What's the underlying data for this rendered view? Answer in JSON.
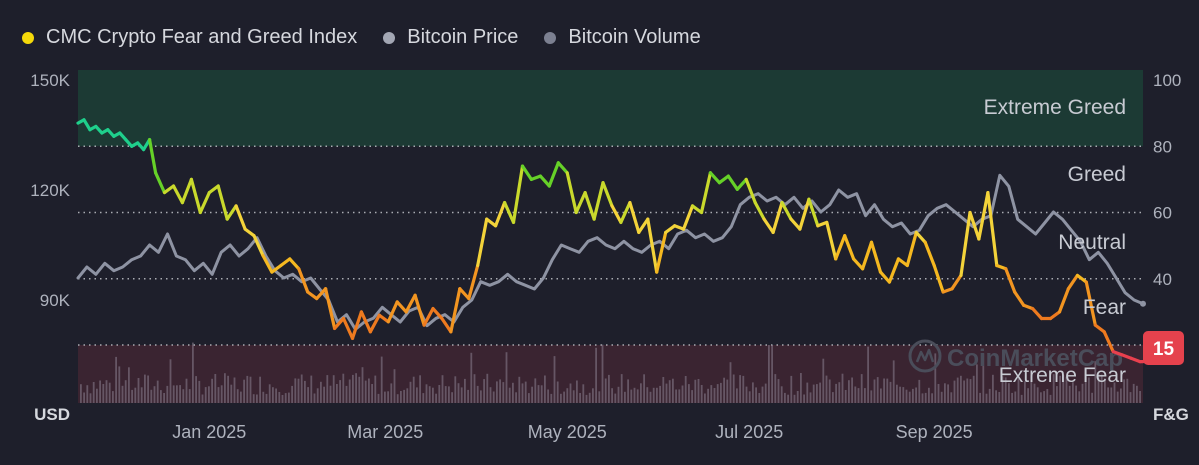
{
  "legend": {
    "items": [
      {
        "label": "CMC Crypto Fear and Greed Index",
        "color": "#f5d90a"
      },
      {
        "label": "Bitcoin Price",
        "color": "#a3a7b4"
      },
      {
        "label": "Bitcoin Volume",
        "color": "#7c8091"
      }
    ]
  },
  "watermark": "CoinMarketCap",
  "current_badge": {
    "value": "15",
    "color": "#e5424d"
  },
  "chart_data": {
    "type": "line",
    "left_axis": {
      "label": "USD",
      "ticks": [
        "150K",
        "120K",
        "90K"
      ],
      "tick_values": [
        150000,
        120000,
        90000
      ]
    },
    "right_axis": {
      "label": "F&G",
      "ticks": [
        100,
        80,
        60,
        40
      ],
      "range": [
        0,
        100
      ]
    },
    "x_ticks": [
      "Jan 2025",
      "Mar 2025",
      "May 2025",
      "Jul 2025",
      "Sep 2025"
    ],
    "x_tick_days": [
      31,
      90,
      151,
      212,
      274
    ],
    "x_range_days": [
      -13,
      344
    ],
    "zones": [
      {
        "label": "Extreme Greed",
        "range": [
          80,
          100
        ],
        "color": "#1c3a34"
      },
      {
        "label": "Greed",
        "range": [
          60,
          80
        ],
        "color": ""
      },
      {
        "label": "Neutral",
        "range": [
          40,
          60
        ],
        "color": ""
      },
      {
        "label": "Fear",
        "range": [
          20,
          40
        ],
        "color": ""
      },
      {
        "label": "Extreme Fear",
        "range": [
          0,
          20
        ],
        "color": "#3a2431"
      }
    ],
    "fear_greed": {
      "name": "CMC Crypto Fear and Greed Index",
      "x": [
        -13,
        -11,
        -9,
        -7,
        -5,
        -3,
        -1,
        1,
        3,
        5,
        7,
        9,
        11,
        13,
        16,
        19,
        22,
        25,
        28,
        31,
        34,
        37,
        40,
        43,
        46,
        49,
        52,
        55,
        58,
        61,
        64,
        67,
        70,
        73,
        76,
        79,
        82,
        85,
        88,
        91,
        94,
        97,
        100,
        103,
        106,
        109,
        112,
        115,
        118,
        121,
        124,
        127,
        130,
        133,
        136,
        139,
        142,
        145,
        148,
        151,
        154,
        157,
        160,
        163,
        166,
        169,
        172,
        175,
        178,
        181,
        184,
        187,
        190,
        193,
        196,
        199,
        202,
        205,
        208,
        211,
        214,
        217,
        220,
        223,
        226,
        229,
        232,
        235,
        238,
        241,
        244,
        247,
        250,
        253,
        256,
        259,
        262,
        265,
        268,
        271,
        274,
        277,
        280,
        283,
        286,
        289,
        292,
        295,
        298,
        301,
        304,
        307,
        310,
        313,
        316,
        319,
        322,
        325,
        328,
        331,
        334,
        337,
        340,
        343,
        344
      ],
      "y": [
        87,
        88,
        85,
        86,
        84,
        85,
        83,
        84,
        82,
        80,
        81,
        79,
        82,
        72,
        66,
        68,
        63,
        70,
        60,
        66,
        68,
        58,
        62,
        55,
        53,
        47,
        42,
        44,
        46,
        43,
        36,
        34,
        37,
        25,
        28,
        22,
        30,
        24,
        29,
        27,
        33,
        30,
        35,
        26,
        31,
        28,
        24,
        37,
        34,
        44,
        58,
        56,
        63,
        57,
        74,
        70,
        71,
        68,
        75,
        72,
        60,
        66,
        58,
        69,
        62,
        57,
        63,
        54,
        58,
        42,
        54,
        56,
        55,
        62,
        60,
        72,
        69,
        71,
        67,
        70,
        63,
        58,
        54,
        63,
        58,
        55,
        64,
        56,
        57,
        46,
        53,
        46,
        43,
        51,
        42,
        39,
        46,
        44,
        54,
        51,
        44,
        36,
        37,
        41,
        60,
        52,
        66,
        44,
        43,
        36,
        32,
        31,
        28,
        28,
        30,
        37,
        41,
        39,
        26,
        24,
        18,
        17,
        16,
        15,
        15
      ],
      "current": 15
    },
    "bitcoin_price": {
      "name": "Bitcoin Price",
      "x": [
        -13,
        -10,
        -7,
        -4,
        -1,
        2,
        5,
        8,
        11,
        14,
        17,
        20,
        23,
        26,
        29,
        32,
        35,
        38,
        41,
        44,
        47,
        50,
        53,
        56,
        59,
        62,
        65,
        68,
        71,
        74,
        77,
        80,
        83,
        86,
        89,
        92,
        95,
        98,
        101,
        104,
        107,
        110,
        113,
        116,
        119,
        122,
        125,
        128,
        131,
        134,
        137,
        140,
        143,
        146,
        149,
        152,
        155,
        158,
        161,
        164,
        167,
        170,
        173,
        176,
        179,
        182,
        185,
        188,
        191,
        194,
        197,
        200,
        203,
        206,
        209,
        212,
        215,
        218,
        221,
        224,
        227,
        230,
        233,
        236,
        239,
        242,
        245,
        248,
        251,
        254,
        257,
        260,
        263,
        266,
        269,
        272,
        275,
        278,
        281,
        284,
        287,
        290,
        293,
        296,
        299,
        302,
        305,
        308,
        311,
        314,
        317,
        320,
        323,
        326,
        329,
        332,
        335,
        338,
        341,
        344
      ],
      "y": [
        96000,
        99000,
        97000,
        100000,
        98000,
        99000,
        101000,
        102000,
        105000,
        103000,
        108000,
        102000,
        101000,
        98000,
        100000,
        97000,
        103000,
        105000,
        102000,
        104000,
        107000,
        102000,
        98000,
        96000,
        97000,
        95000,
        96000,
        93000,
        90000,
        84000,
        86000,
        82000,
        84000,
        85000,
        88000,
        86000,
        84000,
        87000,
        88000,
        83000,
        85000,
        86000,
        84000,
        88000,
        90000,
        95000,
        94000,
        95000,
        97000,
        95000,
        94000,
        93000,
        96000,
        101000,
        105000,
        104000,
        103000,
        106000,
        107000,
        105000,
        104000,
        106000,
        104000,
        103000,
        105000,
        106000,
        104000,
        108000,
        109000,
        107000,
        108000,
        106000,
        107000,
        110000,
        116000,
        118000,
        119000,
        117000,
        118000,
        116000,
        118000,
        115000,
        117000,
        114000,
        116000,
        120000,
        118000,
        119000,
        113000,
        116000,
        112000,
        110000,
        111000,
        108000,
        109000,
        113000,
        115000,
        116000,
        114000,
        112000,
        110000,
        112000,
        113000,
        124000,
        121000,
        112000,
        110000,
        108000,
        111000,
        114000,
        112000,
        109000,
        106000,
        101000,
        103000,
        100000,
        96000,
        92000,
        90000,
        89000
      ],
      "unit": "USD"
    },
    "bitcoin_volume": {
      "name": "Bitcoin Volume",
      "note": "relative bar heights only, no scale printed"
    }
  }
}
